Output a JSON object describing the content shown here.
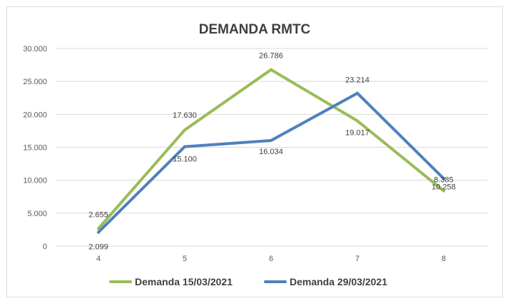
{
  "chart_data": {
    "type": "line",
    "title": "DEMANDA RMTC",
    "categories": [
      "4",
      "5",
      "6",
      "7",
      "8"
    ],
    "y_ticks": [
      "0",
      "5.000",
      "10.000",
      "15.000",
      "20.000",
      "25.000",
      "30.000"
    ],
    "ylim": [
      0,
      30000
    ],
    "grid": true,
    "legend_position": "bottom",
    "series": [
      {
        "name": "Demanda 15/03/2021",
        "color": "#9bbb59",
        "values": [
          2655,
          17630,
          26786,
          19017,
          8385
        ],
        "labels": [
          "2.655",
          "17.630",
          "26.786",
          "19.017",
          "8.385"
        ]
      },
      {
        "name": "Demanda 29/03/2021",
        "color": "#4f81bd",
        "values": [
          2099,
          15100,
          16034,
          23214,
          10258
        ],
        "labels": [
          "2.099",
          "15.100",
          "16.034",
          "23.214",
          "10.258"
        ]
      }
    ]
  }
}
